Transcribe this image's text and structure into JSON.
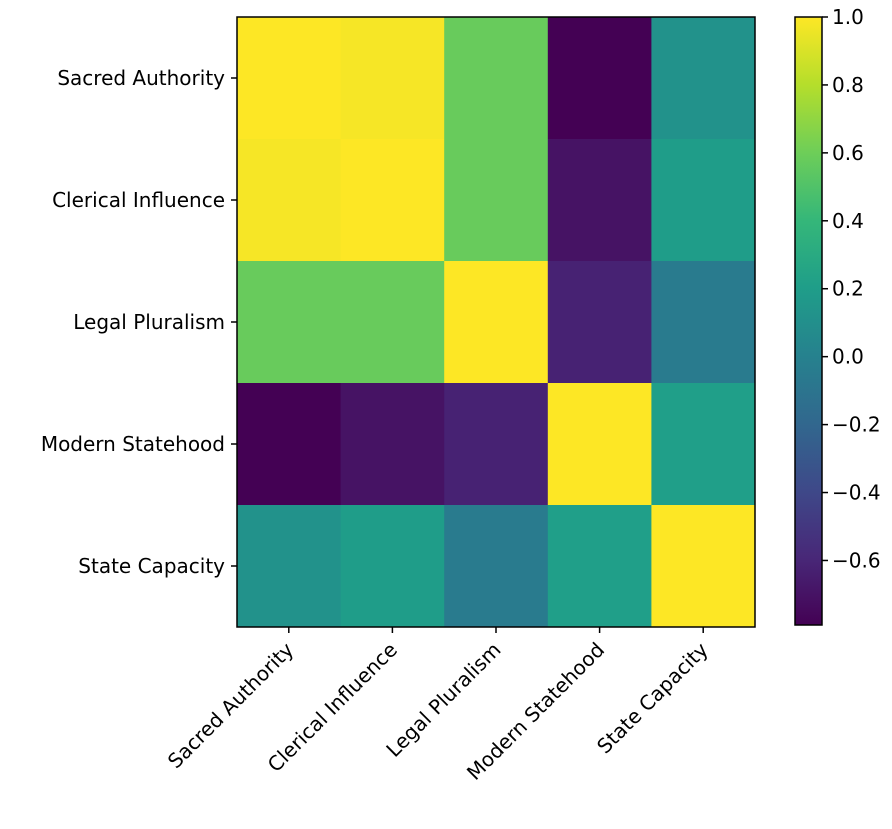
{
  "chart_data": {
    "type": "heatmap",
    "title": "",
    "xlabel": "",
    "ylabel": "",
    "rows": [
      "Sacred Authority",
      "Clerical Influence",
      "Legal Pluralism",
      "Modern Statehood",
      "State Capacity"
    ],
    "columns": [
      "Sacred Authority",
      "Clerical Influence",
      "Legal Pluralism",
      "Modern Statehood",
      "State Capacity"
    ],
    "values": [
      [
        1.0,
        0.98,
        0.58,
        -0.79,
        0.12
      ],
      [
        0.98,
        1.0,
        0.58,
        -0.7,
        0.2
      ],
      [
        0.58,
        0.58,
        1.0,
        -0.62,
        -0.05
      ],
      [
        -0.79,
        -0.7,
        -0.62,
        1.0,
        0.21
      ],
      [
        0.12,
        0.2,
        -0.05,
        0.21,
        1.0
      ]
    ],
    "colorbar": {
      "colormap": "viridis",
      "range": [
        -0.79,
        1.0
      ],
      "ticks": [
        -0.6,
        -0.4,
        -0.2,
        0.0,
        0.2,
        0.4,
        0.6,
        0.8,
        1.0
      ],
      "tick_labels": [
        "−0.6",
        "−0.4",
        "−0.2",
        "0.0",
        "0.2",
        "0.4",
        "0.6",
        "0.8",
        "1.0"
      ]
    },
    "x_tick_rotation_deg": 45
  }
}
